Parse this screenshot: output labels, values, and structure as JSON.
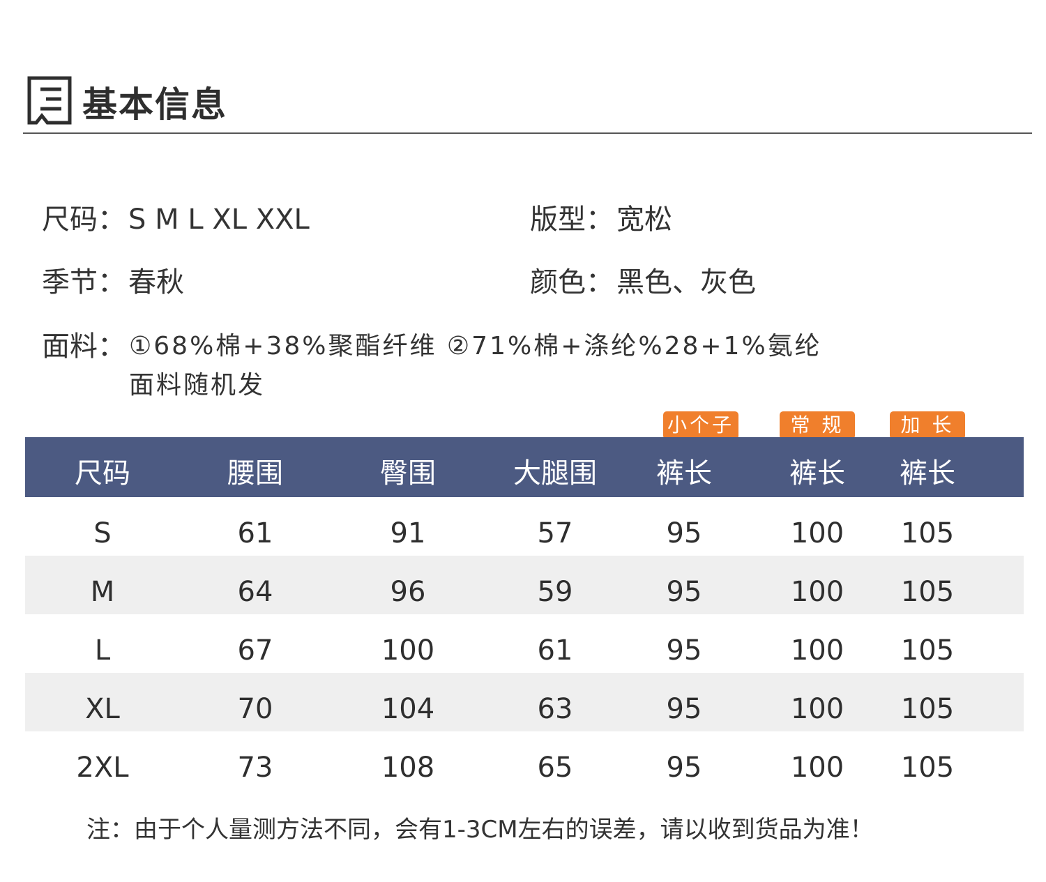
{
  "section": {
    "title": "基本信息",
    "icon": "document-list-icon"
  },
  "info": {
    "size": {
      "label": "尺码：",
      "value": "S M L XL XXL"
    },
    "fit": {
      "label": "版型：",
      "value": "宽松"
    },
    "season": {
      "label": "季节：",
      "value": "春秋"
    },
    "color": {
      "label": "颜色：",
      "value": "黑色、灰色"
    },
    "fabric": {
      "label": "面料：",
      "line1": "①68%棉+38%聚酯纤维  ②71%棉+涤纶%28+1%氨纶",
      "line2": "面料随机发"
    }
  },
  "tags": [
    "小个子",
    "常 规",
    "加 长"
  ],
  "table": {
    "headers": [
      "尺码",
      "腰围",
      "臀围",
      "大腿围",
      "裤长",
      "裤长",
      "裤长"
    ],
    "rows": [
      [
        "S",
        "61",
        "91",
        "57",
        "95",
        "100",
        "105"
      ],
      [
        "M",
        "64",
        "96",
        "59",
        "95",
        "100",
        "105"
      ],
      [
        "L",
        "67",
        "100",
        "61",
        "95",
        "100",
        "105"
      ],
      [
        "XL",
        "70",
        "104",
        "63",
        "95",
        "100",
        "105"
      ],
      [
        "2XL",
        "73",
        "108",
        "65",
        "95",
        "100",
        "105"
      ]
    ]
  },
  "note": "注：由于个人量测方法不同，会有1-3CM左右的误差，请以收到货品为准！",
  "colors": {
    "header_bg": "#4c5a82",
    "tag_bg": "#f07f2c",
    "row_alt_bg": "#efefef"
  }
}
